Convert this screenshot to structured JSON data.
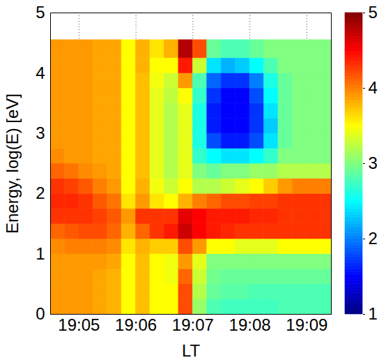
{
  "chart_data": {
    "type": "heatmap",
    "x_label": "LT",
    "y_label": "Energy, log(E) [eV]",
    "xlim": [
      1144.5,
      1149.43
    ],
    "xticks": [
      {
        "value": 1145,
        "label": "19:05"
      },
      {
        "value": 1146,
        "label": "19:06"
      },
      {
        "value": 1147,
        "label": "19:07"
      },
      {
        "value": 1148,
        "label": "19:08"
      },
      {
        "value": 1149,
        "label": "19:09"
      }
    ],
    "ylim": [
      0,
      5
    ],
    "yticks": [
      0,
      1,
      2,
      3,
      4,
      5
    ],
    "grid": true,
    "x_bins": [
      1144.5,
      1144.75,
      1145,
      1145.25,
      1145.5,
      1145.75,
      1146,
      1146.25,
      1146.5,
      1146.75,
      1147,
      1147.25,
      1147.5,
      1147.75,
      1148,
      1148.25,
      1148.5,
      1148.75,
      1149,
      1149.25,
      1149.5
    ],
    "y_bins": [
      0,
      0.25,
      0.5,
      0.75,
      1,
      1.25,
      1.5,
      1.75,
      2,
      2.25,
      2.5,
      2.75,
      3,
      3.25,
      3.5,
      3.75,
      4,
      4.25,
      4.55
    ],
    "values": [
      [
        3.9,
        3.9,
        3.9,
        3.9,
        3.95,
        4.1,
        4.3,
        4.35,
        4.3,
        4.1,
        3.95,
        3.9,
        3.9,
        3.9,
        3.9,
        3.9,
        3.9,
        3.9
      ],
      [
        3.9,
        3.9,
        3.9,
        3.9,
        4.0,
        4.15,
        4.3,
        4.35,
        4.25,
        4.05,
        3.9,
        3.9,
        3.9,
        3.9,
        3.9,
        3.9,
        3.9,
        3.9
      ],
      [
        3.9,
        3.9,
        3.9,
        3.9,
        4.0,
        4.2,
        4.3,
        4.3,
        4.15,
        3.95,
        3.9,
        3.9,
        3.9,
        3.9,
        3.9,
        3.9,
        3.9,
        3.9
      ],
      [
        3.85,
        3.85,
        3.85,
        3.9,
        4.0,
        4.2,
        4.25,
        4.15,
        4.0,
        3.9,
        3.85,
        3.85,
        3.85,
        3.85,
        3.85,
        3.85,
        3.85,
        3.85
      ],
      [
        3.8,
        3.8,
        3.8,
        3.85,
        3.95,
        4.1,
        4.15,
        4.05,
        3.9,
        3.85,
        3.85,
        3.85,
        3.85,
        3.85,
        3.85,
        3.85,
        3.85,
        3.85
      ],
      [
        3.5,
        3.5,
        3.5,
        3.5,
        3.6,
        3.8,
        3.9,
        3.6,
        3.5,
        3.5,
        3.5,
        3.5,
        3.5,
        3.5,
        3.5,
        3.5,
        3.5,
        3.5
      ],
      [
        3.75,
        3.75,
        3.75,
        3.75,
        3.8,
        4.1,
        4.3,
        3.9,
        3.8,
        3.75,
        3.75,
        3.75,
        3.75,
        3.75,
        3.75,
        3.75,
        3.8,
        3.8
      ],
      [
        3.5,
        3.5,
        3.5,
        3.5,
        3.7,
        4.3,
        4.3,
        3.6,
        3.45,
        3.4,
        3.4,
        3.4,
        3.4,
        3.4,
        3.4,
        3.45,
        3.5,
        3.6
      ],
      [
        3.5,
        3.5,
        3.45,
        3.45,
        3.7,
        4.4,
        4.3,
        3.5,
        3.3,
        3.2,
        3.2,
        3.2,
        3.2,
        3.2,
        3.25,
        3.3,
        3.5,
        3.8
      ],
      [
        4.2,
        4.2,
        4.1,
        3.9,
        4.2,
        4.7,
        4.6,
        3.8,
        3.5,
        3.4,
        3.4,
        3.4,
        3.4,
        3.4,
        3.5,
        3.9,
        4.4,
        4.8
      ],
      [
        3.1,
        3.2,
        3.3,
        3.4,
        3.9,
        4.5,
        4.5,
        4.0,
        3.2,
        3.0,
        2.7,
        2.6,
        2.6,
        2.6,
        2.7,
        2.8,
        3.3,
        4.2
      ],
      [
        2.8,
        2.9,
        2.95,
        3.0,
        3.5,
        4.4,
        4.4,
        4.1,
        3.2,
        2.9,
        2.5,
        1.8,
        1.6,
        1.6,
        1.7,
        1.9,
        2.4,
        2.9
      ],
      [
        2.75,
        2.85,
        2.9,
        3.0,
        3.5,
        4.35,
        4.4,
        4.2,
        3.3,
        3.0,
        2.4,
        1.6,
        1.5,
        1.5,
        1.5,
        1.7,
        2.2,
        2.8
      ],
      [
        2.75,
        2.85,
        2.9,
        3.0,
        3.4,
        4.3,
        4.4,
        4.2,
        3.4,
        3.0,
        2.4,
        1.6,
        1.5,
        1.5,
        1.5,
        1.7,
        2.3,
        2.8
      ],
      [
        2.75,
        2.8,
        2.9,
        3.0,
        3.4,
        4.3,
        4.35,
        4.25,
        3.5,
        3.1,
        2.5,
        1.8,
        1.7,
        1.7,
        1.8,
        2.0,
        2.5,
        2.9
      ],
      [
        2.75,
        2.8,
        2.9,
        3.0,
        3.4,
        4.3,
        4.35,
        4.25,
        3.7,
        3.1,
        2.7,
        2.4,
        2.3,
        2.4,
        2.5,
        2.6,
        2.8,
        3.0
      ],
      [
        2.8,
        2.8,
        2.9,
        3.0,
        3.5,
        4.3,
        4.3,
        4.3,
        3.9,
        3.2,
        3.0,
        2.9,
        2.9,
        2.9,
        2.9,
        2.9,
        3.0,
        3.0
      ],
      [
        2.8,
        2.8,
        2.9,
        3.0,
        3.5,
        4.3,
        4.3,
        4.3,
        4.0,
        3.2,
        3.0,
        3.0,
        3.0,
        3.0,
        3.0,
        3.0,
        3.0,
        3.0
      ],
      [
        2.8,
        2.8,
        2.9,
        3.0,
        3.5,
        4.3,
        4.3,
        4.3,
        4.0,
        3.2,
        3.0,
        3.0,
        3.0,
        3.0,
        3.0,
        3.0,
        3.0,
        3.0
      ],
      [
        2.8,
        2.8,
        2.9,
        3.0,
        3.5,
        4.3,
        4.3,
        4.3,
        4.0,
        3.2,
        3.0,
        3.0,
        3.0,
        3.0,
        3.0,
        3.0,
        3.0,
        3.0
      ]
    ],
    "colorbar": {
      "range": [
        1,
        5
      ],
      "ticks": [
        1,
        2,
        3,
        4,
        5
      ]
    }
  }
}
